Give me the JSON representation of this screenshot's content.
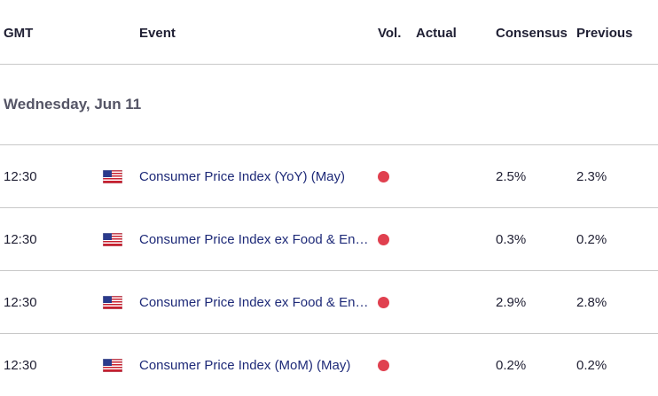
{
  "header": {
    "gmt": "GMT",
    "event": "Event",
    "vol": "Vol.",
    "actual": "Actual",
    "consensus": "Consensus",
    "previous": "Previous"
  },
  "date": "Wednesday, Jun 11",
  "colors": {
    "volatility_dot": "#e0404f",
    "event_link": "#1e2a78",
    "divider": "#c8c8c8"
  },
  "events": [
    {
      "time": "12:30",
      "country_icon": "us-flag-icon",
      "title": "Consumer Price Index (YoY) (May)",
      "volatility": "high",
      "actual": "",
      "consensus": "2.5%",
      "previous": "2.3%"
    },
    {
      "time": "12:30",
      "country_icon": "us-flag-icon",
      "title": "Consumer Price Index ex Food & Energy (YoY) (May)",
      "volatility": "high",
      "actual": "",
      "consensus": "0.3%",
      "previous": "0.2%"
    },
    {
      "time": "12:30",
      "country_icon": "us-flag-icon",
      "title": "Consumer Price Index ex Food & Energy (MoM) (May)",
      "volatility": "high",
      "actual": "",
      "consensus": "2.9%",
      "previous": "2.8%"
    },
    {
      "time": "12:30",
      "country_icon": "us-flag-icon",
      "title": "Consumer Price Index (MoM) (May)",
      "volatility": "high",
      "actual": "",
      "consensus": "0.2%",
      "previous": "0.2%"
    }
  ]
}
